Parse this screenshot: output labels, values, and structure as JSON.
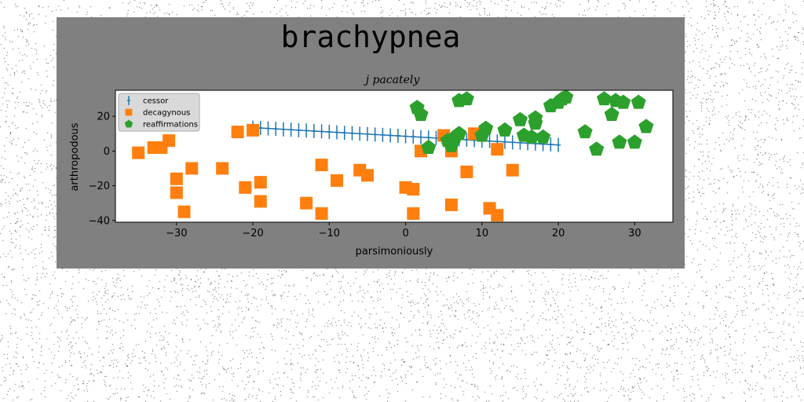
{
  "chart_data": {
    "type": "scatter",
    "suptitle": "brachypnea",
    "title": "j pacately",
    "xlabel": "parsimoniously",
    "ylabel": "arthropodous",
    "xlim": [
      -38,
      35
    ],
    "ylim": [
      -41,
      35
    ],
    "xticks": [
      -30,
      -20,
      -10,
      0,
      10,
      20,
      30
    ],
    "yticks": [
      -40,
      -20,
      0,
      20
    ],
    "grid": false,
    "legend_position": "upper-left",
    "series": [
      {
        "name": "cessor",
        "marker": "plus",
        "color": "#1f77b4",
        "x": [
          -20,
          -19,
          -18,
          -17,
          -16,
          -15,
          -14,
          -13,
          -12,
          -11,
          -10,
          -9,
          -8,
          -7,
          -6,
          -5,
          -4,
          -3,
          -2,
          -1,
          0,
          1,
          2,
          3,
          4,
          5,
          6,
          7,
          8,
          9,
          10,
          11,
          12,
          13,
          14,
          15,
          16,
          17,
          18,
          19,
          20
        ],
        "y": [
          13.5,
          13.3,
          13.0,
          12.8,
          12.5,
          12.3,
          12.0,
          11.8,
          11.5,
          11.3,
          11.0,
          10.8,
          10.5,
          10.3,
          10.0,
          9.8,
          9.5,
          9.3,
          9.0,
          8.8,
          8.5,
          8.3,
          8.0,
          7.8,
          7.5,
          7.3,
          7.0,
          6.8,
          6.5,
          6.3,
          6.0,
          5.8,
          5.5,
          5.3,
          5.0,
          4.8,
          4.5,
          4.3,
          4.0,
          3.8,
          3.5
        ]
      },
      {
        "name": "decagynous",
        "marker": "square",
        "color": "#ff7f0e",
        "x": [
          -35,
          -33,
          -32,
          -31,
          -30,
          -30,
          -29,
          -28,
          -24,
          -22,
          -21,
          -20,
          -19,
          -19,
          -13,
          -11,
          -11,
          -9,
          -6,
          -5,
          0,
          1,
          1,
          2,
          5,
          6,
          6,
          8,
          9,
          11,
          12,
          12,
          14
        ],
        "y": [
          -1,
          2,
          2,
          6,
          -16,
          -24,
          -35,
          -10,
          -10,
          11,
          -21,
          12,
          -18,
          -29,
          -30,
          -8,
          -36,
          -17,
          -11,
          -14,
          -21,
          -22,
          -36,
          0,
          9,
          0,
          -31,
          -12,
          10,
          -33,
          1,
          -37,
          -11
        ]
      },
      {
        "name": "reaffirmations",
        "marker": "pentagon",
        "color": "#2ca02c",
        "x": [
          1.5,
          2,
          3,
          5.5,
          6,
          6.5,
          7,
          7,
          8,
          10,
          10.5,
          13,
          15,
          15.5,
          16.5,
          17,
          17,
          18,
          19,
          20,
          20.5,
          21,
          23.5,
          25,
          26,
          27,
          27.5,
          28,
          28.5,
          30,
          30.5,
          31.5
        ],
        "y": [
          25,
          21,
          2,
          6,
          3,
          8,
          10,
          29,
          30,
          9,
          13,
          12,
          18,
          9,
          8,
          16,
          19,
          8,
          26,
          28,
          30,
          31,
          11,
          1,
          30,
          21,
          29,
          5,
          28,
          5,
          28,
          14
        ]
      }
    ]
  }
}
